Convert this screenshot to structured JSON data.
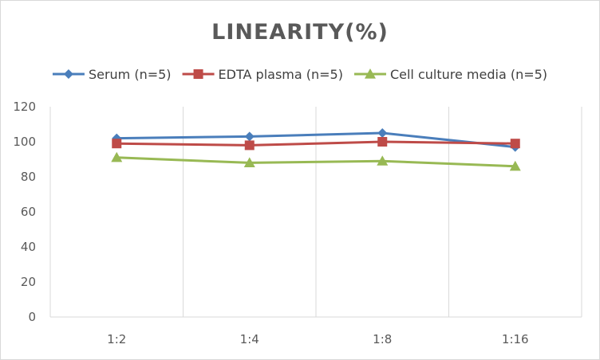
{
  "chart_data": {
    "type": "line",
    "title": "LINEARITY(%)",
    "xlabel": "",
    "ylabel": "",
    "categories": [
      "1:2",
      "1:4",
      "1:8",
      "1:16"
    ],
    "ylim": [
      0,
      120
    ],
    "yticks": [
      0,
      20,
      40,
      60,
      80,
      100,
      120
    ],
    "grid": "vertical category lines",
    "legend_position": "top",
    "series": [
      {
        "name": "Serum (n=5)",
        "values": [
          102,
          103,
          105,
          97
        ],
        "color": "#4a7ebb",
        "marker": "diamond"
      },
      {
        "name": "EDTA plasma (n=5)",
        "values": [
          99,
          98,
          100,
          99
        ],
        "color": "#be4b48",
        "marker": "square"
      },
      {
        "name": "Cell culture media (n=5)",
        "values": [
          91,
          88,
          89,
          86
        ],
        "color": "#98b954",
        "marker": "triangle"
      }
    ]
  }
}
